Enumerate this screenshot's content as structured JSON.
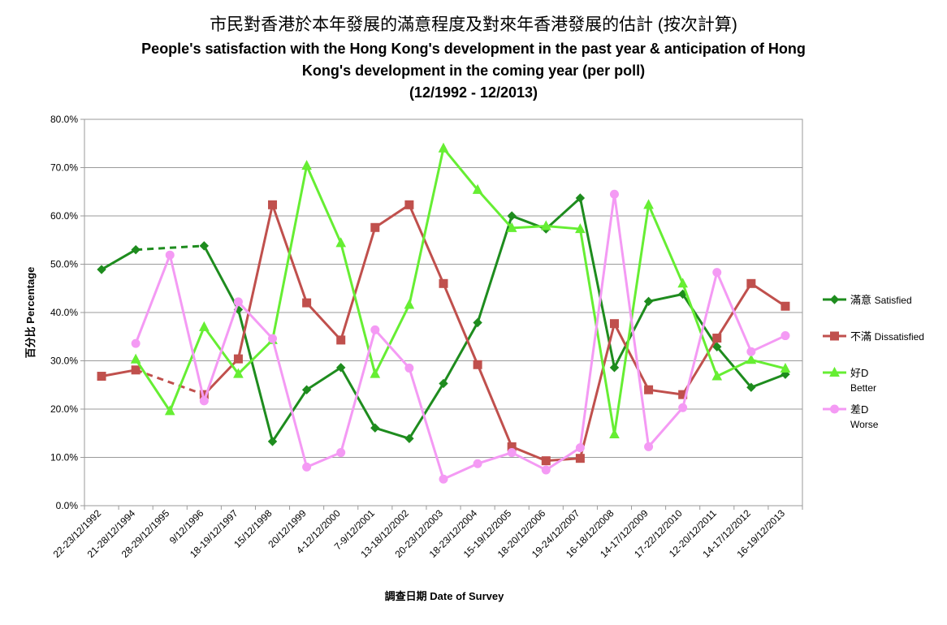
{
  "chart_data": {
    "type": "line",
    "title_lines": [
      "市民對香港於本年發展的滿意程度及對來年香港發展的估計 (按次計算)",
      "People's satisfaction with the Hong Kong's development in the past year & anticipation of Hong",
      "Kong's development in the coming year (per poll)",
      "(12/1992 - 12/2013)"
    ],
    "xlabel": "調查日期 Date of Survey",
    "ylabel": "百分比 Percentage",
    "ylim": [
      0,
      80
    ],
    "y_ticks": [
      "0.0%",
      "10.0%",
      "20.0%",
      "30.0%",
      "40.0%",
      "50.0%",
      "60.0%",
      "70.0%",
      "80.0%"
    ],
    "grid": "horizontal",
    "legend_position": "right",
    "categories": [
      "22-23/12/1992",
      "21-28/12/1994",
      "28-29/12/1995",
      "9/12/1996",
      "18-19/12/1997",
      "15/12/1998",
      "20/12/1999",
      "4-12/12/2000",
      "7-9/12/2001",
      "13-18/12/2002",
      "20-23/12/2003",
      "18-23/12/2004",
      "15-19/12/2005",
      "18-20/12/2006",
      "19-24/12/2007",
      "16-18/12/2008",
      "14-17/12/2009",
      "17-22/12/2010",
      "12-20/12/2011",
      "14-17/12/2012",
      "16-19/12/2013"
    ],
    "series": [
      {
        "name": "滿意 Satisfied",
        "color": "#1e8c1e",
        "marker": "diamond",
        "dashed_segments": [
          [
            1,
            3
          ]
        ],
        "values": [
          48.9,
          53.0,
          null,
          53.8,
          40.6,
          13.3,
          24.0,
          28.6,
          16.1,
          13.9,
          25.3,
          37.9,
          60.0,
          57.3,
          63.7,
          28.6,
          42.3,
          43.8,
          32.9,
          24.5,
          27.2
        ]
      },
      {
        "name": "不滿 Dissatisfied",
        "color": "#c0504d",
        "marker": "square",
        "dashed_segments": [
          [
            1,
            3
          ]
        ],
        "values": [
          26.8,
          28.1,
          null,
          23.0,
          30.4,
          62.3,
          42.0,
          34.3,
          57.6,
          62.3,
          46.0,
          29.2,
          12.2,
          9.3,
          9.8,
          37.7,
          24.0,
          23.0,
          34.7,
          46.0,
          41.3
        ]
      },
      {
        "name": "好D Better",
        "color": "#66ee33",
        "marker": "triangle",
        "dashed_segments": [],
        "values": [
          null,
          30.3,
          19.6,
          37.0,
          27.3,
          34.3,
          70.4,
          54.4,
          27.3,
          41.6,
          74.0,
          65.4,
          57.5,
          57.9,
          57.3,
          14.8,
          62.3,
          46.0,
          26.8,
          30.2,
          28.4
        ]
      },
      {
        "name": "差D Worse",
        "color": "#f49af4",
        "marker": "circle",
        "dashed_segments": [],
        "values": [
          null,
          33.6,
          51.9,
          21.7,
          42.2,
          34.6,
          8.0,
          11.0,
          36.4,
          28.5,
          5.5,
          8.7,
          11.0,
          7.4,
          12.0,
          64.5,
          12.2,
          20.3,
          48.3,
          31.9,
          35.2
        ]
      }
    ],
    "legend": [
      {
        "label": "滿意",
        "sub": "Satisfied"
      },
      {
        "label": "不滿",
        "sub": "Dissatisfied"
      },
      {
        "label": "好D",
        "sub": "Better"
      },
      {
        "label": "差D",
        "sub": "Worse"
      }
    ]
  }
}
